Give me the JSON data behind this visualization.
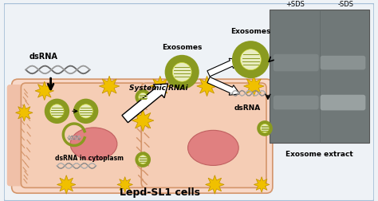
{
  "title": "Lepd-SL1 cells",
  "title_fontsize": 9,
  "bg_color": "#eef2f6",
  "cell_fill": "#f5cdb5",
  "cell_edge": "#d4956a",
  "cell_wall_left": "#f0c0a0",
  "nucleus_fill": "#e08080",
  "nucleus_edge": "#c06060",
  "exosome_outer": "#8a9a20",
  "exosome_inner_fill": "#d4e040",
  "yellow_color": "#f0c000",
  "yellow_edge": "#c09000",
  "label_dsrna": "dsRNA",
  "label_exosomes_mid": "Exosomes",
  "label_exosomes_right": "Exosomes",
  "label_systemic": "Systemic RNAi",
  "label_cytoplasm": "dsRNA in cytoplasm",
  "label_dsrna_right": "dsRNA",
  "label_exosome_extract": "Exosome extract",
  "label_plus_sds": "+SDS",
  "label_minus_sds": "-SDS",
  "gel_bg": "#707878",
  "border_color": "#a8c0d8"
}
